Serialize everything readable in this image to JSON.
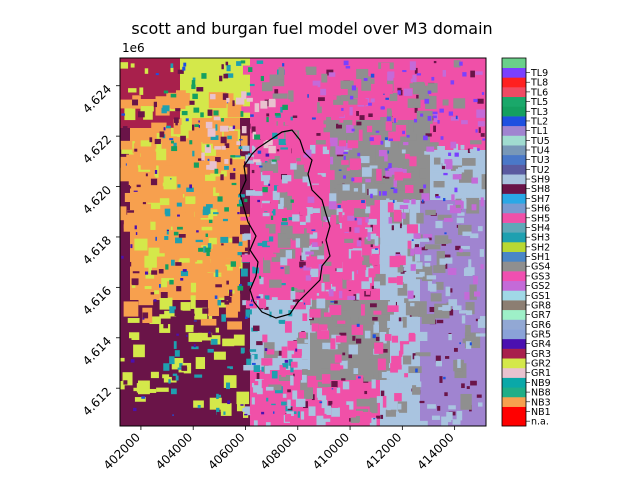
{
  "chart_data": {
    "type": "heatmap",
    "title": "scott and burgan fuel model over M3 domain",
    "xlabel": "",
    "ylabel": "",
    "y_offset_label": "1e6",
    "xlim": [
      401200,
      415200
    ],
    "ylim": [
      4.6105,
      4.6251
    ],
    "x_ticks": [
      402000,
      404000,
      406000,
      408000,
      410000,
      412000,
      414000
    ],
    "x_tick_labels": [
      "402000",
      "404000",
      "406000",
      "408000",
      "410000",
      "412000",
      "414000"
    ],
    "y_ticks": [
      4.612,
      4.614,
      4.616,
      4.618,
      4.62,
      4.622,
      4.624
    ],
    "y_tick_labels": [
      "4.612",
      "4.614",
      "4.616",
      "4.618",
      "4.620",
      "4.622",
      "4.624"
    ],
    "colorbar": {
      "placement": "right",
      "categories": [
        {
          "label": "n.a.",
          "color": "#ff0000"
        },
        {
          "label": "NB1",
          "color": "#ff0000"
        },
        {
          "label": "NB3",
          "color": "#f7a04e"
        },
        {
          "label": "NB8",
          "color": "#1fae87"
        },
        {
          "label": "NB9",
          "color": "#0aa8a8"
        },
        {
          "label": "GR1",
          "color": "#e9c2cf"
        },
        {
          "label": "GR2",
          "color": "#d4e84a"
        },
        {
          "label": "GR3",
          "color": "#a8204c"
        },
        {
          "label": "GR4",
          "color": "#4a10b0"
        },
        {
          "label": "GR5",
          "color": "#8aa2d8"
        },
        {
          "label": "GR6",
          "color": "#92a8d4"
        },
        {
          "label": "GR7",
          "color": "#9ef0c8"
        },
        {
          "label": "GR8",
          "color": "#8c7e72"
        },
        {
          "label": "GS1",
          "color": "#a0d8e6"
        },
        {
          "label": "GS2",
          "color": "#c46ad8"
        },
        {
          "label": "GS3",
          "color": "#f04fb0"
        },
        {
          "label": "GS4",
          "color": "#8f8f8f"
        },
        {
          "label": "SH1",
          "color": "#4a86c6"
        },
        {
          "label": "SH2",
          "color": "#b8d832"
        },
        {
          "label": "SH3",
          "color": "#1ea0b0"
        },
        {
          "label": "SH4",
          "color": "#60a8b8"
        },
        {
          "label": "SH5",
          "color": "#f050a8"
        },
        {
          "label": "SH6",
          "color": "#7a9ad0"
        },
        {
          "label": "SH7",
          "color": "#2aa8e6"
        },
        {
          "label": "SH8",
          "color": "#6a1448"
        },
        {
          "label": "SH9",
          "color": "#a9c4e0"
        },
        {
          "label": "TU2",
          "color": "#5a5aa0"
        },
        {
          "label": "TU3",
          "color": "#4a78c8"
        },
        {
          "label": "TU4",
          "color": "#7898b8"
        },
        {
          "label": "TU5",
          "color": "#a0dcd0"
        },
        {
          "label": "TL1",
          "color": "#a084d0"
        },
        {
          "label": "TL2",
          "color": "#1e50e0"
        },
        {
          "label": "TL3",
          "color": "#14a060"
        },
        {
          "label": "TL5",
          "color": "#1aa86a"
        },
        {
          "label": "TL6",
          "color": "#f04a64"
        },
        {
          "label": "TL8",
          "color": "#ff2020"
        },
        {
          "label": "TL9",
          "color": "#7a40ff"
        },
        {
          "label": "",
          "color": "#6ad08a"
        }
      ]
    }
  }
}
